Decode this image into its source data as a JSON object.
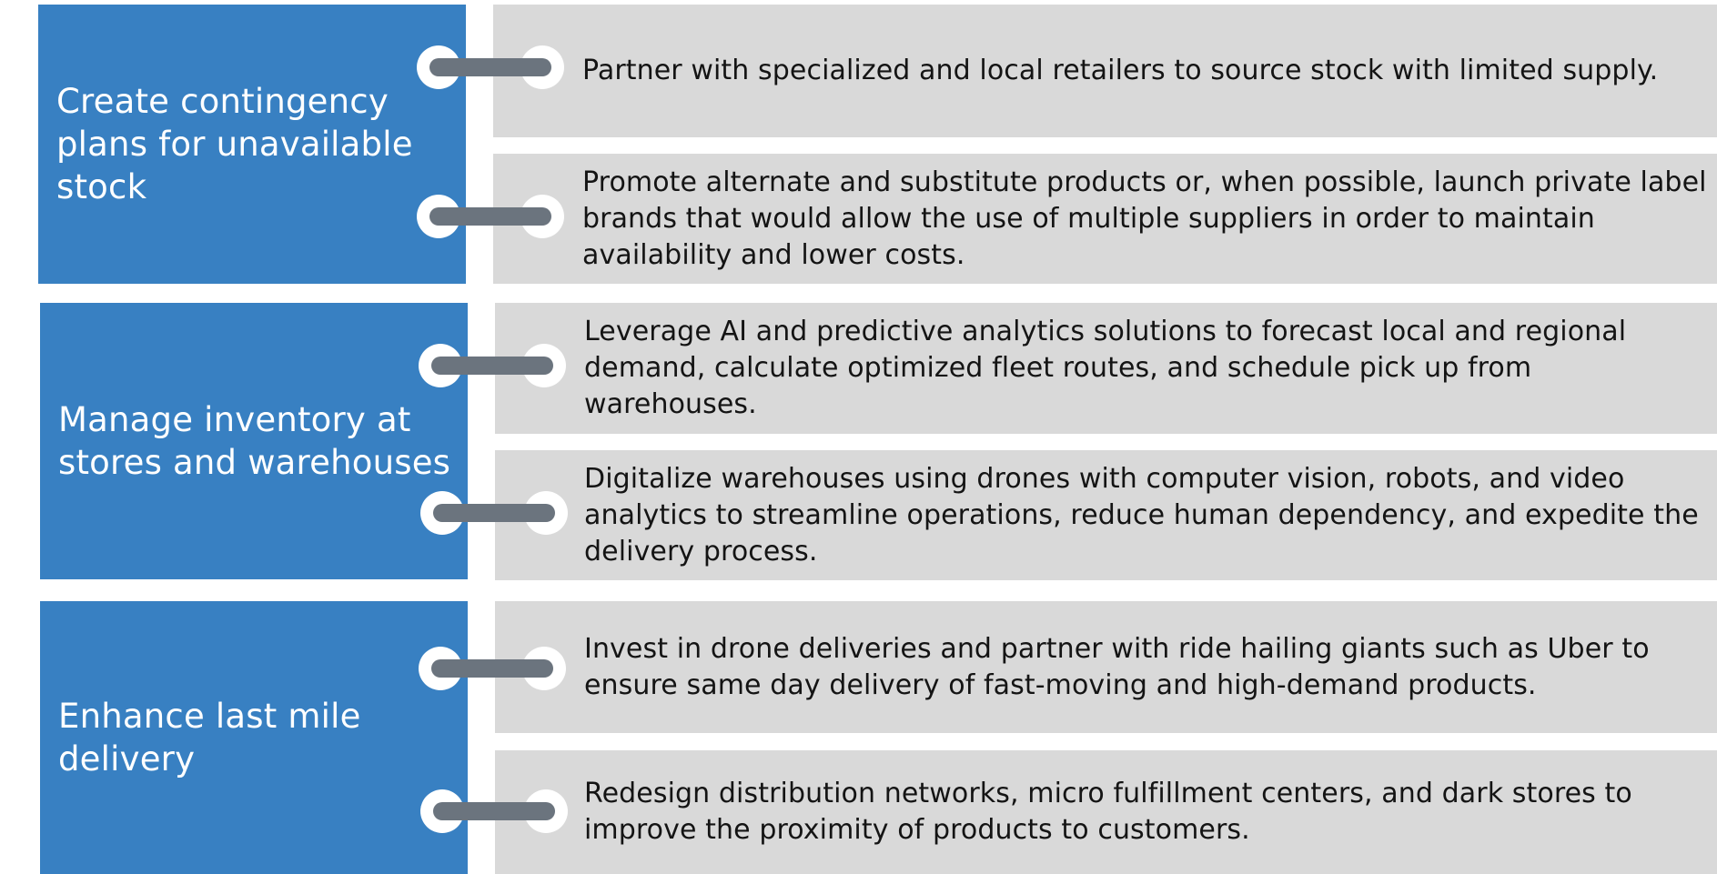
{
  "groups": [
    {
      "category": "Create contingency plans for unavailable stock",
      "details": [
        "Partner with specialized and local retailers to source stock with limited supply.",
        "Promote alternate and substitute products or, when possible, launch private label brands that would allow the use of multiple suppliers in order to maintain availability and lower costs."
      ]
    },
    {
      "category": "Manage inventory at stores and warehouses",
      "details": [
        "Leverage AI and predictive analytics solutions to forecast local and regional demand, calculate optimized fleet routes, and schedule pick up from warehouses.",
        "Digitalize warehouses using drones with computer vision, robots, and video analytics to streamline operations, reduce human dependency, and expedite the delivery process."
      ]
    },
    {
      "category": "Enhance last mile delivery",
      "details": [
        "Invest in drone deliveries and partner with ride hailing giants such as Uber to ensure same day delivery of fast-moving and high-demand products.",
        "Redesign distribution networks, micro fulfillment centers, and dark stores to improve the proximity of products to customers."
      ]
    }
  ],
  "colors": {
    "category_background": "#3880c2",
    "detail_background": "#d9d9d9",
    "connector_bar": "#6b747e",
    "connector_ring": "#ffffff"
  }
}
